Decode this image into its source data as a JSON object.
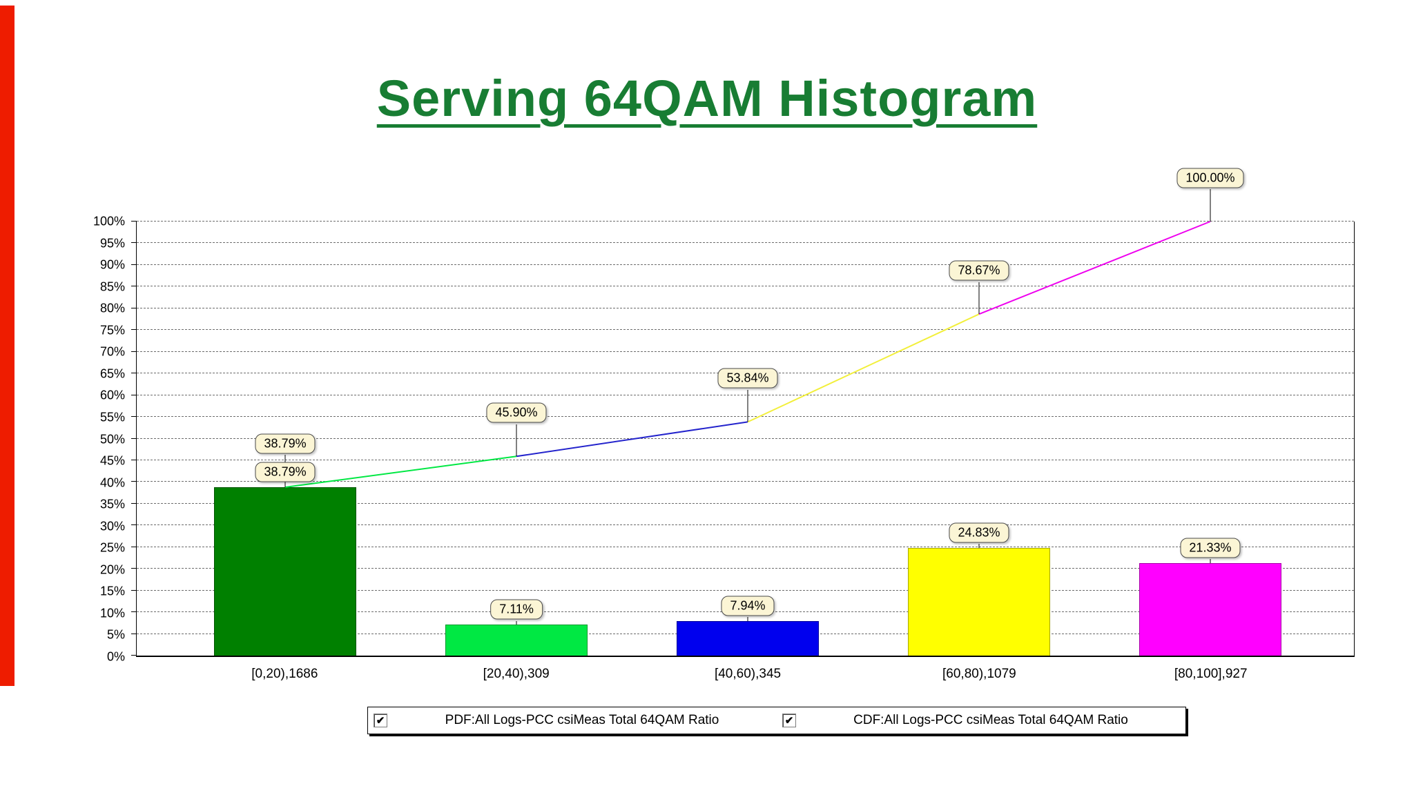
{
  "page": {
    "title": "Serving 64QAM Histogram"
  },
  "icons": {
    "checkbox_check": "✔"
  },
  "colors": {
    "title_green": "#187d33",
    "left_strip_red": "#ee1c00",
    "callout_background": "#fbf5d5",
    "bar_colors": [
      "#008000",
      "#00e843",
      "#0000ee",
      "#ffff00",
      "#ff00ff"
    ],
    "cdf_segment_colors": [
      "#00e843",
      "#2323cc",
      "#f2ef3a",
      "#ee00ee"
    ]
  },
  "chart_data": {
    "type": "bar",
    "title": "Serving 64QAM Histogram",
    "categories": [
      "[0,20),1686",
      "[20,40),309",
      "[40,60),345",
      "[60,80),1079",
      "[80,100],927"
    ],
    "series": [
      {
        "name": "PDF:All Logs-PCC csiMeas Total 64QAM Ratio",
        "type": "bar",
        "values": [
          38.79,
          7.11,
          7.94,
          24.83,
          21.33
        ]
      },
      {
        "name": "CDF:All Logs-PCC csiMeas Total 64QAM Ratio",
        "type": "line",
        "values": [
          38.79,
          45.9,
          53.84,
          78.67,
          100.0
        ]
      }
    ],
    "bar_labels": [
      "38.79%",
      "7.11%",
      "7.94%",
      "24.83%",
      "21.33%"
    ],
    "cdf_labels": [
      "38.79%",
      "45.90%",
      "53.84%",
      "78.67%",
      "100.00%"
    ],
    "ylim": [
      0,
      100
    ],
    "ytick_step": 5,
    "yticks": [
      "0%",
      "5%",
      "10%",
      "15%",
      "20%",
      "25%",
      "30%",
      "35%",
      "40%",
      "45%",
      "50%",
      "55%",
      "60%",
      "65%",
      "70%",
      "75%",
      "80%",
      "85%",
      "90%",
      "95%",
      "100%"
    ],
    "grid": "horizontal-dashed",
    "legend_position": "bottom"
  },
  "legend": {
    "items": [
      {
        "label": "PDF:All Logs-PCC csiMeas Total 64QAM Ratio",
        "checked": true
      },
      {
        "label": "CDF:All Logs-PCC csiMeas Total 64QAM Ratio",
        "checked": true
      }
    ]
  }
}
